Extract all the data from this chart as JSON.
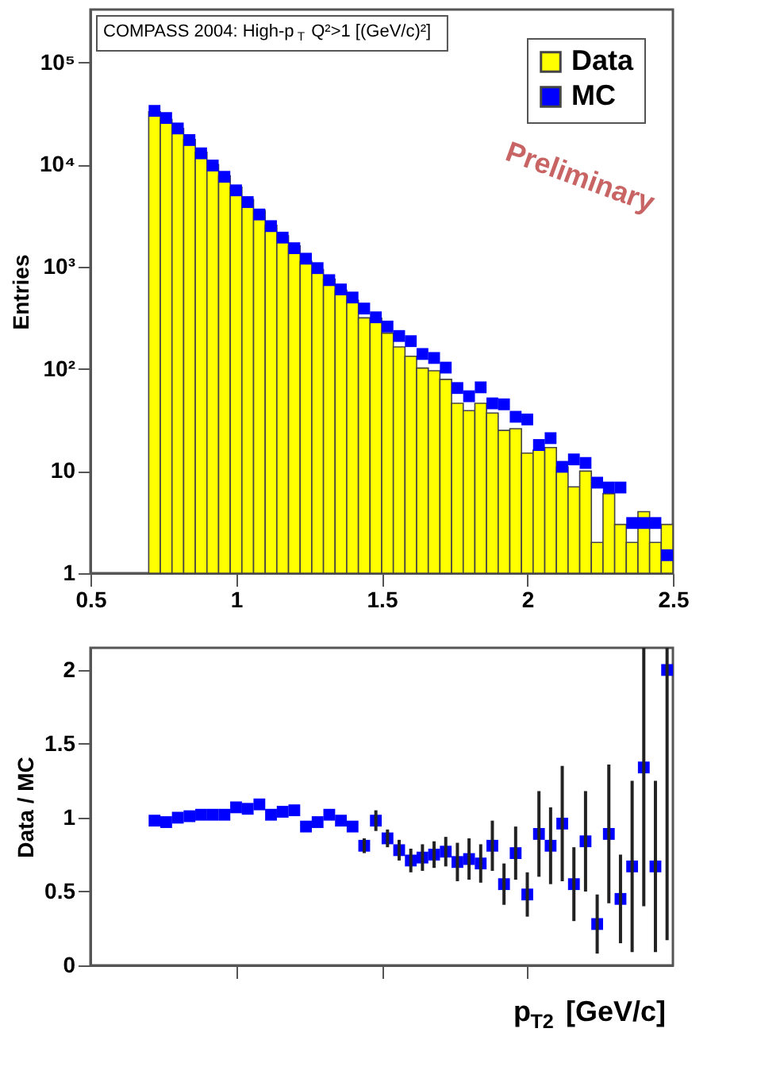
{
  "chart_data": [
    {
      "type": "histogram",
      "title": "COMPASS 2004: High-p$_{T}$ Q²>1 [(GeV/c)²]",
      "ylabel": "Entries",
      "bins": [
        0.7,
        0.74,
        0.78,
        0.82,
        0.86,
        0.9,
        0.94,
        0.98,
        1.02,
        1.06,
        1.1,
        1.14,
        1.18,
        1.22,
        1.26,
        1.3,
        1.34,
        1.38,
        1.42,
        1.46,
        1.5,
        1.54,
        1.58,
        1.62,
        1.66,
        1.7,
        1.74,
        1.78,
        1.82,
        1.86,
        1.9,
        1.94,
        1.98,
        2.02,
        2.06,
        2.1,
        2.14,
        2.18,
        2.22,
        2.26,
        2.3,
        2.34,
        2.38,
        2.42,
        2.46,
        2.5
      ],
      "series": [
        {
          "name": "Data",
          "type": "histogram",
          "color": "#ffff00",
          "values": [
            32900,
            27700,
            22600,
            17600,
            13200,
            10000,
            7750,
            6000,
            4560,
            3540,
            2550,
            2010,
            1600,
            1130,
            940,
            755,
            590,
            470,
            316,
            314,
            224,
            164,
            133,
            102,
            96,
            79,
            46,
            39,
            46,
            37,
            25,
            26,
            15,
            16,
            17,
            11,
            7,
            10,
            2,
            6,
            3,
            2,
            4,
            2,
            3
          ]
        },
        {
          "name": "MC",
          "type": "scatter",
          "color": "#0000ff",
          "x": [
            0.72,
            0.76,
            0.8,
            0.84,
            0.88,
            0.92,
            0.96,
            1.0,
            1.04,
            1.08,
            1.12,
            1.16,
            1.2,
            1.24,
            1.28,
            1.32,
            1.36,
            1.4,
            1.44,
            1.48,
            1.52,
            1.56,
            1.6,
            1.64,
            1.68,
            1.72,
            1.76,
            1.8,
            1.84,
            1.88,
            1.92,
            1.96,
            2.0,
            2.04,
            2.08,
            2.12,
            2.16,
            2.2,
            2.24,
            2.28,
            2.32,
            2.36,
            2.4,
            2.44,
            2.48
          ],
          "values": [
            33600,
            28600,
            22600,
            17400,
            12900,
            9800,
            7600,
            5600,
            4300,
            3250,
            2500,
            1930,
            1520,
            1200,
            970,
            740,
            600,
            500,
            390,
            320,
            260,
            210,
            187,
            140,
            128,
            103,
            65,
            54,
            66,
            46,
            45,
            34,
            32,
            18,
            21,
            11,
            13,
            12,
            7.7,
            6.9,
            6.9,
            3.1,
            3.1,
            3.1,
            1.5
          ]
        }
      ],
      "xlim": [
        0.5,
        2.5
      ],
      "xticks": [
        0.5,
        1,
        1.5,
        2,
        2.5
      ],
      "ylim": [
        1,
        330000
      ],
      "yticks": [
        1,
        10,
        {
          "value": 100,
          "label": "10²"
        },
        {
          "value": 1000,
          "label": "10³"
        },
        {
          "value": 10000,
          "label": "10⁴"
        },
        {
          "value": 100000,
          "label": "10⁵"
        }
      ],
      "log": "y",
      "grid": false,
      "legend": "top right",
      "marker": "square",
      "annotations": [
        "Preliminary"
      ]
    },
    {
      "type": "scatter",
      "ylabel": "Data / MC",
      "xlabel": "p$_{T2}$ [GeV/c]",
      "color": "#0000ff",
      "marker": "square",
      "x": [
        0.72,
        0.76,
        0.8,
        0.84,
        0.88,
        0.92,
        0.96,
        1.0,
        1.04,
        1.08,
        1.12,
        1.16,
        1.2,
        1.24,
        1.28,
        1.32,
        1.36,
        1.4,
        1.44,
        1.48,
        1.52,
        1.56,
        1.6,
        1.64,
        1.68,
        1.72,
        1.76,
        1.8,
        1.84,
        1.88,
        1.92,
        1.96,
        2.0,
        2.04,
        2.08,
        2.12,
        2.16,
        2.2,
        2.24,
        2.28,
        2.32,
        2.36,
        2.4,
        2.44,
        2.48
      ],
      "values": [
        0.98,
        0.97,
        1.0,
        1.01,
        1.02,
        1.02,
        1.02,
        1.07,
        1.06,
        1.09,
        1.02,
        1.04,
        1.05,
        0.94,
        0.97,
        1.02,
        0.98,
        0.94,
        0.81,
        0.98,
        0.86,
        0.78,
        0.71,
        0.73,
        0.75,
        0.77,
        0.7,
        0.72,
        0.69,
        0.81,
        0.55,
        0.76,
        0.48,
        0.89,
        0.81,
        0.96,
        0.55,
        0.84,
        0.28,
        0.89,
        0.45,
        0.67,
        1.34,
        0.67,
        2.0
      ],
      "errors": [
        null,
        null,
        null,
        null,
        null,
        null,
        null,
        null,
        null,
        null,
        null,
        null,
        null,
        null,
        null,
        null,
        null,
        null,
        0.05,
        0.07,
        0.06,
        0.07,
        0.08,
        0.09,
        0.09,
        0.1,
        0.13,
        0.14,
        0.13,
        0.17,
        0.14,
        0.18,
        0.15,
        0.29,
        0.26,
        0.39,
        0.25,
        0.34,
        0.2,
        0.47,
        0.3,
        0.58,
        [
          0.4,
          2.15
        ],
        [
          0.09,
          1.25
        ],
        [
          0.17,
          2.15
        ]
      ],
      "xlim": [
        0.5,
        2.5
      ],
      "xticks": [
        {
          "value": 1,
          "label": null
        },
        {
          "value": 1.5,
          "label": null
        },
        {
          "value": 2,
          "label": null
        }
      ],
      "ylim": [
        0,
        2.15
      ],
      "yticks": [
        0,
        0.5,
        1,
        1.5,
        2
      ],
      "tick_labels": "y",
      "grid": false
    }
  ]
}
